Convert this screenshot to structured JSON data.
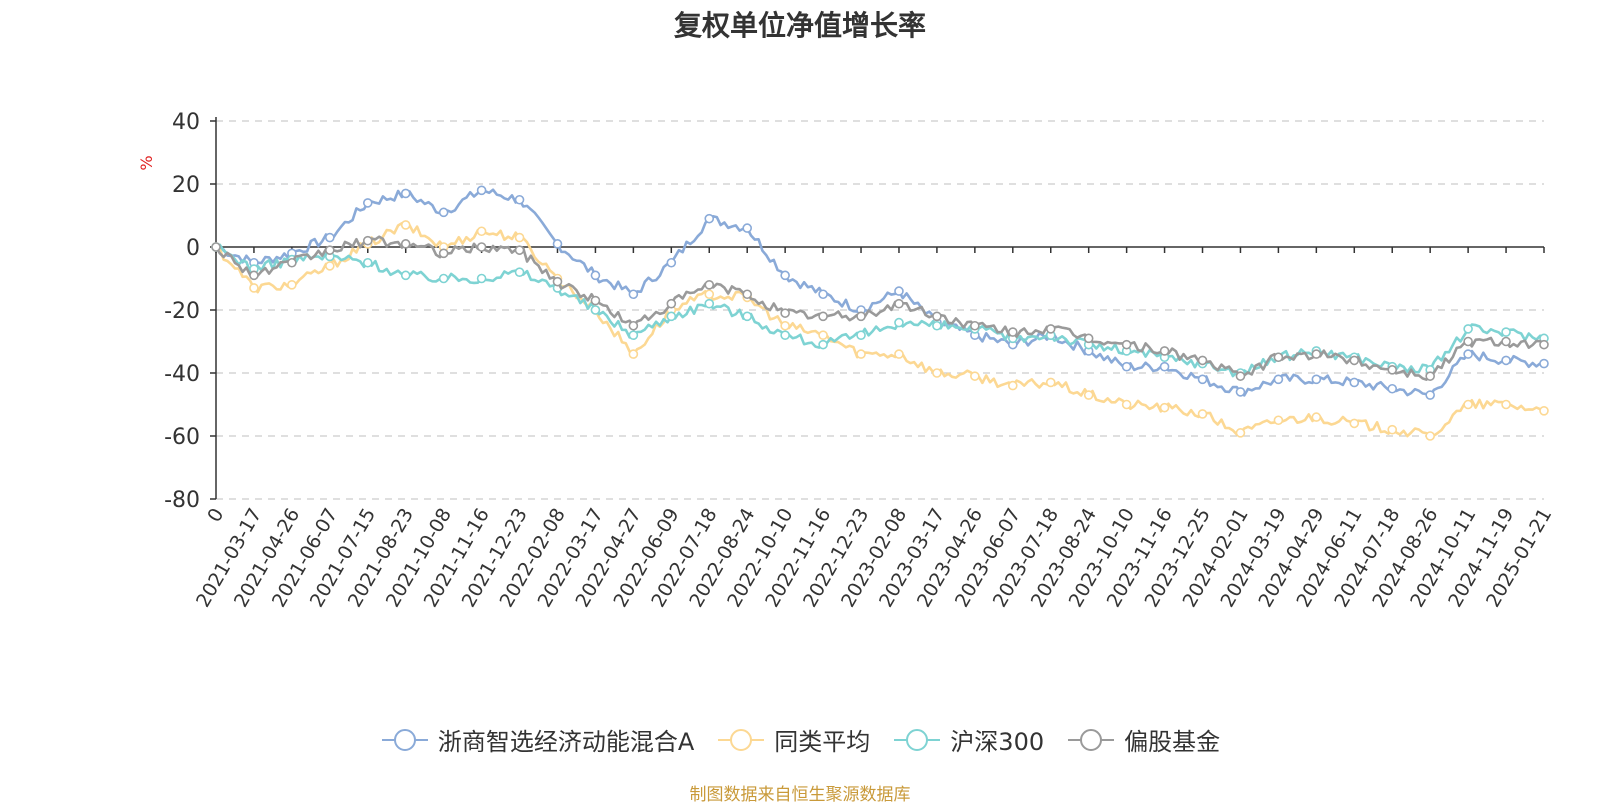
{
  "chart_data": {
    "type": "line",
    "title": "复权单位净值增长率",
    "ylabel": "%",
    "ylim": [
      -80,
      40
    ],
    "yticks": [
      40,
      20,
      0,
      -20,
      -40,
      -60,
      -80
    ],
    "categories": [
      "0",
      "2021-03-17",
      "2021-04-26",
      "2021-06-07",
      "2021-07-15",
      "2021-08-23",
      "2021-10-08",
      "2021-11-16",
      "2021-12-23",
      "2022-02-08",
      "2022-03-17",
      "2022-04-27",
      "2022-06-09",
      "2022-07-18",
      "2022-08-24",
      "2022-10-10",
      "2022-11-16",
      "2022-12-23",
      "2023-02-08",
      "2023-03-17",
      "2023-04-26",
      "2023-06-07",
      "2023-07-18",
      "2023-08-24",
      "2023-10-10",
      "2023-11-16",
      "2023-12-25",
      "2024-02-01",
      "2024-03-19",
      "2024-04-29",
      "2024-06-11",
      "2024-07-18",
      "2024-08-26",
      "2024-10-11",
      "2024-11-19",
      "2025-01-21"
    ],
    "series": [
      {
        "name": "浙商智选经济动能混合A",
        "color": "#8aaad8",
        "values": [
          0,
          -5,
          -2,
          3,
          14,
          17,
          11,
          18,
          15,
          1,
          -9,
          -15,
          -5,
          9,
          6,
          -9,
          -15,
          -20,
          -14,
          -24,
          -28,
          -31,
          -28,
          -33,
          -38,
          -38,
          -42,
          -46,
          -42,
          -42,
          -43,
          -45,
          -47,
          -34,
          -36,
          -37
        ]
      },
      {
        "name": "同类平均",
        "color": "#fcd893",
        "values": [
          0,
          -13,
          -12,
          -6,
          1,
          7,
          0,
          5,
          3,
          -10,
          -20,
          -34,
          -20,
          -15,
          -16,
          -25,
          -28,
          -34,
          -34,
          -40,
          -41,
          -44,
          -43,
          -47,
          -50,
          -51,
          -53,
          -59,
          -55,
          -54,
          -56,
          -58,
          -60,
          -50,
          -50,
          -52
        ]
      },
      {
        "name": "沪深300",
        "color": "#7ed3d3",
        "values": [
          0,
          -7,
          -4,
          -3,
          -5,
          -9,
          -10,
          -10,
          -8,
          -13,
          -20,
          -28,
          -22,
          -18,
          -22,
          -28,
          -31,
          -28,
          -24,
          -25,
          -26,
          -29,
          -28,
          -31,
          -33,
          -35,
          -37,
          -40,
          -35,
          -33,
          -35,
          -38,
          -39,
          -26,
          -27,
          -29
        ]
      },
      {
        "name": "偏股基金",
        "color": "#9a9a9a",
        "values": [
          0,
          -9,
          -5,
          -1,
          2,
          1,
          -2,
          0,
          -1,
          -11,
          -17,
          -25,
          -18,
          -12,
          -15,
          -21,
          -22,
          -22,
          -18,
          -22,
          -25,
          -27,
          -26,
          -29,
          -31,
          -33,
          -36,
          -41,
          -35,
          -34,
          -36,
          -39,
          -41,
          -30,
          -30,
          -31
        ]
      }
    ],
    "grid": "horizontal-dashed",
    "legend_position": "bottom"
  },
  "footer": {
    "source": "制图数据来自恒生聚源数据库",
    "source_color": "#c99a3a"
  }
}
